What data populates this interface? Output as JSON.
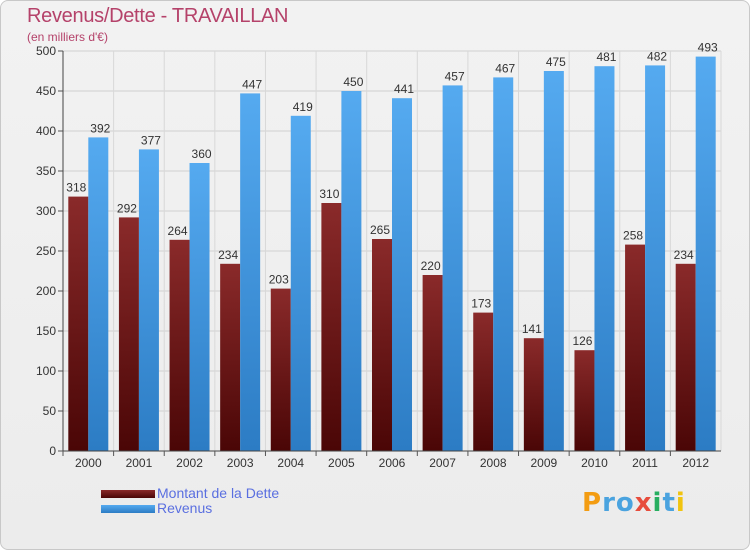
{
  "title": "Revenus/Dette - TRAVAILLAN",
  "subtitle": "(en milliers d'€)",
  "logo": {
    "text": "Proxiti",
    "letters": [
      {
        "ch": "P",
        "color": "#f39c12"
      },
      {
        "ch": "r",
        "color": "#4aa3df"
      },
      {
        "ch": "o",
        "color": "#4aa3df"
      },
      {
        "ch": "x",
        "color": "#e74c3c"
      },
      {
        "ch": "i",
        "color": "#27ae60"
      },
      {
        "ch": "t",
        "color": "#4aa3df"
      },
      {
        "ch": "i",
        "color": "#f1c40f"
      }
    ]
  },
  "legend": [
    {
      "label": "Montant de la Dette",
      "color": "#6b1010"
    },
    {
      "label": "Revenus",
      "color": "#3d8fd6"
    }
  ],
  "chart_data": {
    "type": "bar",
    "title": "Revenus/Dette - TRAVAILLAN",
    "subtitle": "(en milliers d'€)",
    "categories": [
      "2000",
      "2001",
      "2002",
      "2003",
      "2004",
      "2005",
      "2006",
      "2007",
      "2008",
      "2009",
      "2010",
      "2011",
      "2012"
    ],
    "series": [
      {
        "name": "Montant de la Dette",
        "color": "#7a1c1c",
        "values": [
          318,
          292,
          264,
          234,
          203,
          310,
          265,
          220,
          173,
          141,
          126,
          258,
          234
        ]
      },
      {
        "name": "Revenus",
        "color": "#4a9fe0",
        "values": [
          392,
          377,
          360,
          447,
          419,
          450,
          441,
          457,
          467,
          475,
          481,
          482,
          493
        ]
      }
    ],
    "ylim": [
      0,
      500
    ],
    "yticks": [
      0,
      50,
      100,
      150,
      200,
      250,
      300,
      350,
      400,
      450,
      500
    ],
    "grid": true,
    "legend_position": "bottom-left"
  }
}
